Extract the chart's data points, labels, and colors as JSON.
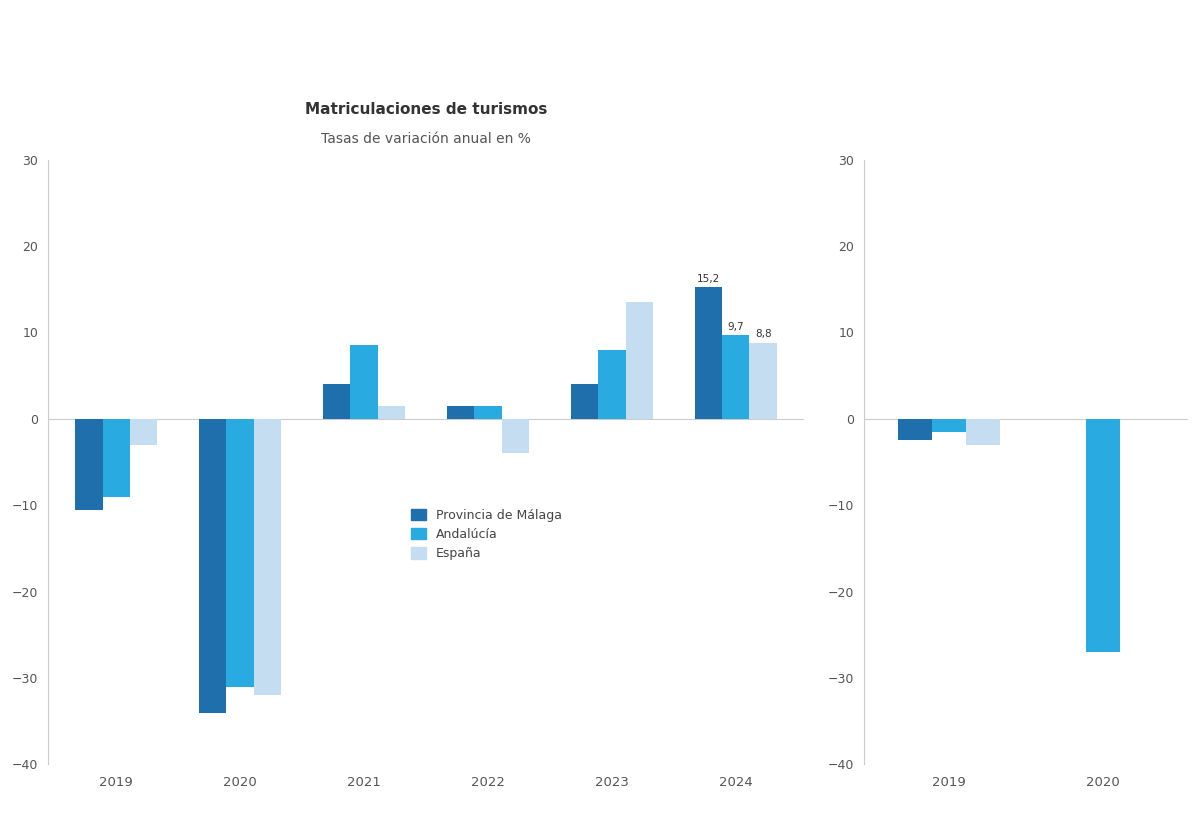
{
  "title_line1": "Matriculaciones de turismos",
  "title_line2": "Tasas de variación anual en %",
  "years": [
    2019,
    2020,
    2021,
    2022,
    2023,
    2024
  ],
  "malaga": [
    -10.5,
    -34.0,
    4.0,
    1.5,
    4.0,
    15.2
  ],
  "andalucia": [
    -9.0,
    -31.0,
    8.5,
    1.5,
    8.0,
    9.7
  ],
  "espana": [
    -3.0,
    -32.0,
    1.5,
    -4.0,
    13.5,
    8.8
  ],
  "malaga2": [
    -2.5,
    0.0
  ],
  "andalucia2": [
    -1.5,
    -27.0
  ],
  "espana2": [
    -3.0,
    0.0
  ],
  "years2": [
    2019,
    2020
  ],
  "labels": [
    "Provincia de Málaga",
    "Andalúcía",
    "España"
  ],
  "colors": [
    "#1f6fad",
    "#29abe2",
    "#c5ddf0"
  ],
  "ylim": [
    -40,
    30
  ],
  "yticks": [
    -40,
    -30,
    -20,
    -10,
    0,
    10,
    20,
    30
  ],
  "annotation_2024": [
    "15,2",
    "9,7",
    "8,8"
  ],
  "background_color": "#ffffff",
  "bar_width": 0.22
}
